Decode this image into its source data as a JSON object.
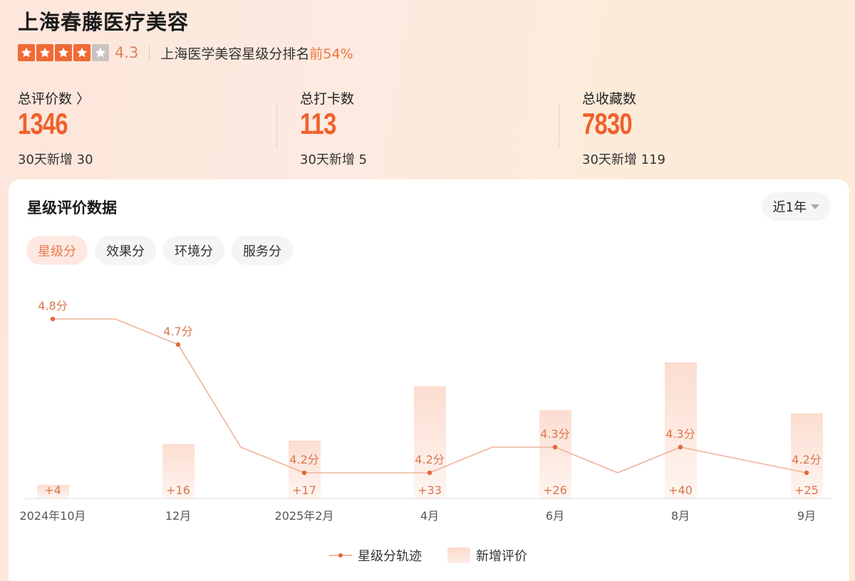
{
  "header": {
    "shop_name": "上海春藤医疗美容",
    "star_count": 4,
    "star_total": 5,
    "rating": "4.3",
    "rank_text": "上海医学美容星级分排名",
    "rank_value": "前54%"
  },
  "stats": [
    {
      "label": "总评价数",
      "has_chevron": true,
      "chevron": "〉",
      "value": "1346",
      "sub": "30天新增 30"
    },
    {
      "label": "总打卡数",
      "has_chevron": false,
      "value": "113",
      "sub": "30天新增 5"
    },
    {
      "label": "总收藏数",
      "has_chevron": false,
      "value": "7830",
      "sub": "30天新增 119"
    }
  ],
  "card": {
    "title": "星级评价数据",
    "period": "近1年",
    "tabs": [
      {
        "label": "星级分",
        "active": true
      },
      {
        "label": "效果分",
        "active": false
      },
      {
        "label": "环境分",
        "active": false
      },
      {
        "label": "服务分",
        "active": false
      }
    ]
  },
  "colors": {
    "accent": "#f0612a",
    "line": "#efb39b",
    "point": "#e0673a",
    "label": "#d9764d",
    "bar_top": "#fcddd0",
    "bar_bottom": "#fef4f0"
  },
  "chart_data": {
    "type": "bar+line",
    "title": "星级评价数据",
    "xlabel": "",
    "ylabel": "",
    "grid": false,
    "legend_position": "bottom",
    "x_tick_labels": [
      "2024年10月",
      "12月",
      "2025年2月",
      "4月",
      "6月",
      "8月",
      "9月"
    ],
    "line_series": {
      "name": "星级分轨迹",
      "months": [
        "2024-10",
        "2024-11",
        "2024-12",
        "2025-01",
        "2025-02",
        "2025-03",
        "2025-04",
        "2025-05",
        "2025-06",
        "2025-07",
        "2025-08",
        "2025-09"
      ],
      "values": [
        4.8,
        4.8,
        4.7,
        4.3,
        4.2,
        4.2,
        4.2,
        4.3,
        4.3,
        4.2,
        4.3,
        4.2
      ],
      "labeled_points": [
        {
          "month": "2024年10月",
          "value": 4.8,
          "label": "4.8分"
        },
        {
          "month": "12月",
          "value": 4.7,
          "label": "4.7分"
        },
        {
          "month": "2025年2月",
          "value": 4.2,
          "label": "4.2分"
        },
        {
          "month": "4月",
          "value": 4.2,
          "label": "4.2分"
        },
        {
          "month": "6月",
          "value": 4.3,
          "label": "4.3分"
        },
        {
          "month": "8月",
          "value": 4.3,
          "label": "4.3分"
        },
        {
          "month": "9月",
          "value": 4.2,
          "label": "4.2分"
        }
      ]
    },
    "bar_series": {
      "name": "新增评价",
      "categories": [
        "2024年10月",
        "12月",
        "2025年2月",
        "4月",
        "6月",
        "8月",
        "9月"
      ],
      "values": [
        4,
        16,
        17,
        33,
        26,
        40,
        25
      ],
      "labels": [
        "+4",
        "+16",
        "+17",
        "+33",
        "+26",
        "+40",
        "+25"
      ]
    },
    "legend": [
      "星级分轨迹",
      "新增评价"
    ]
  }
}
